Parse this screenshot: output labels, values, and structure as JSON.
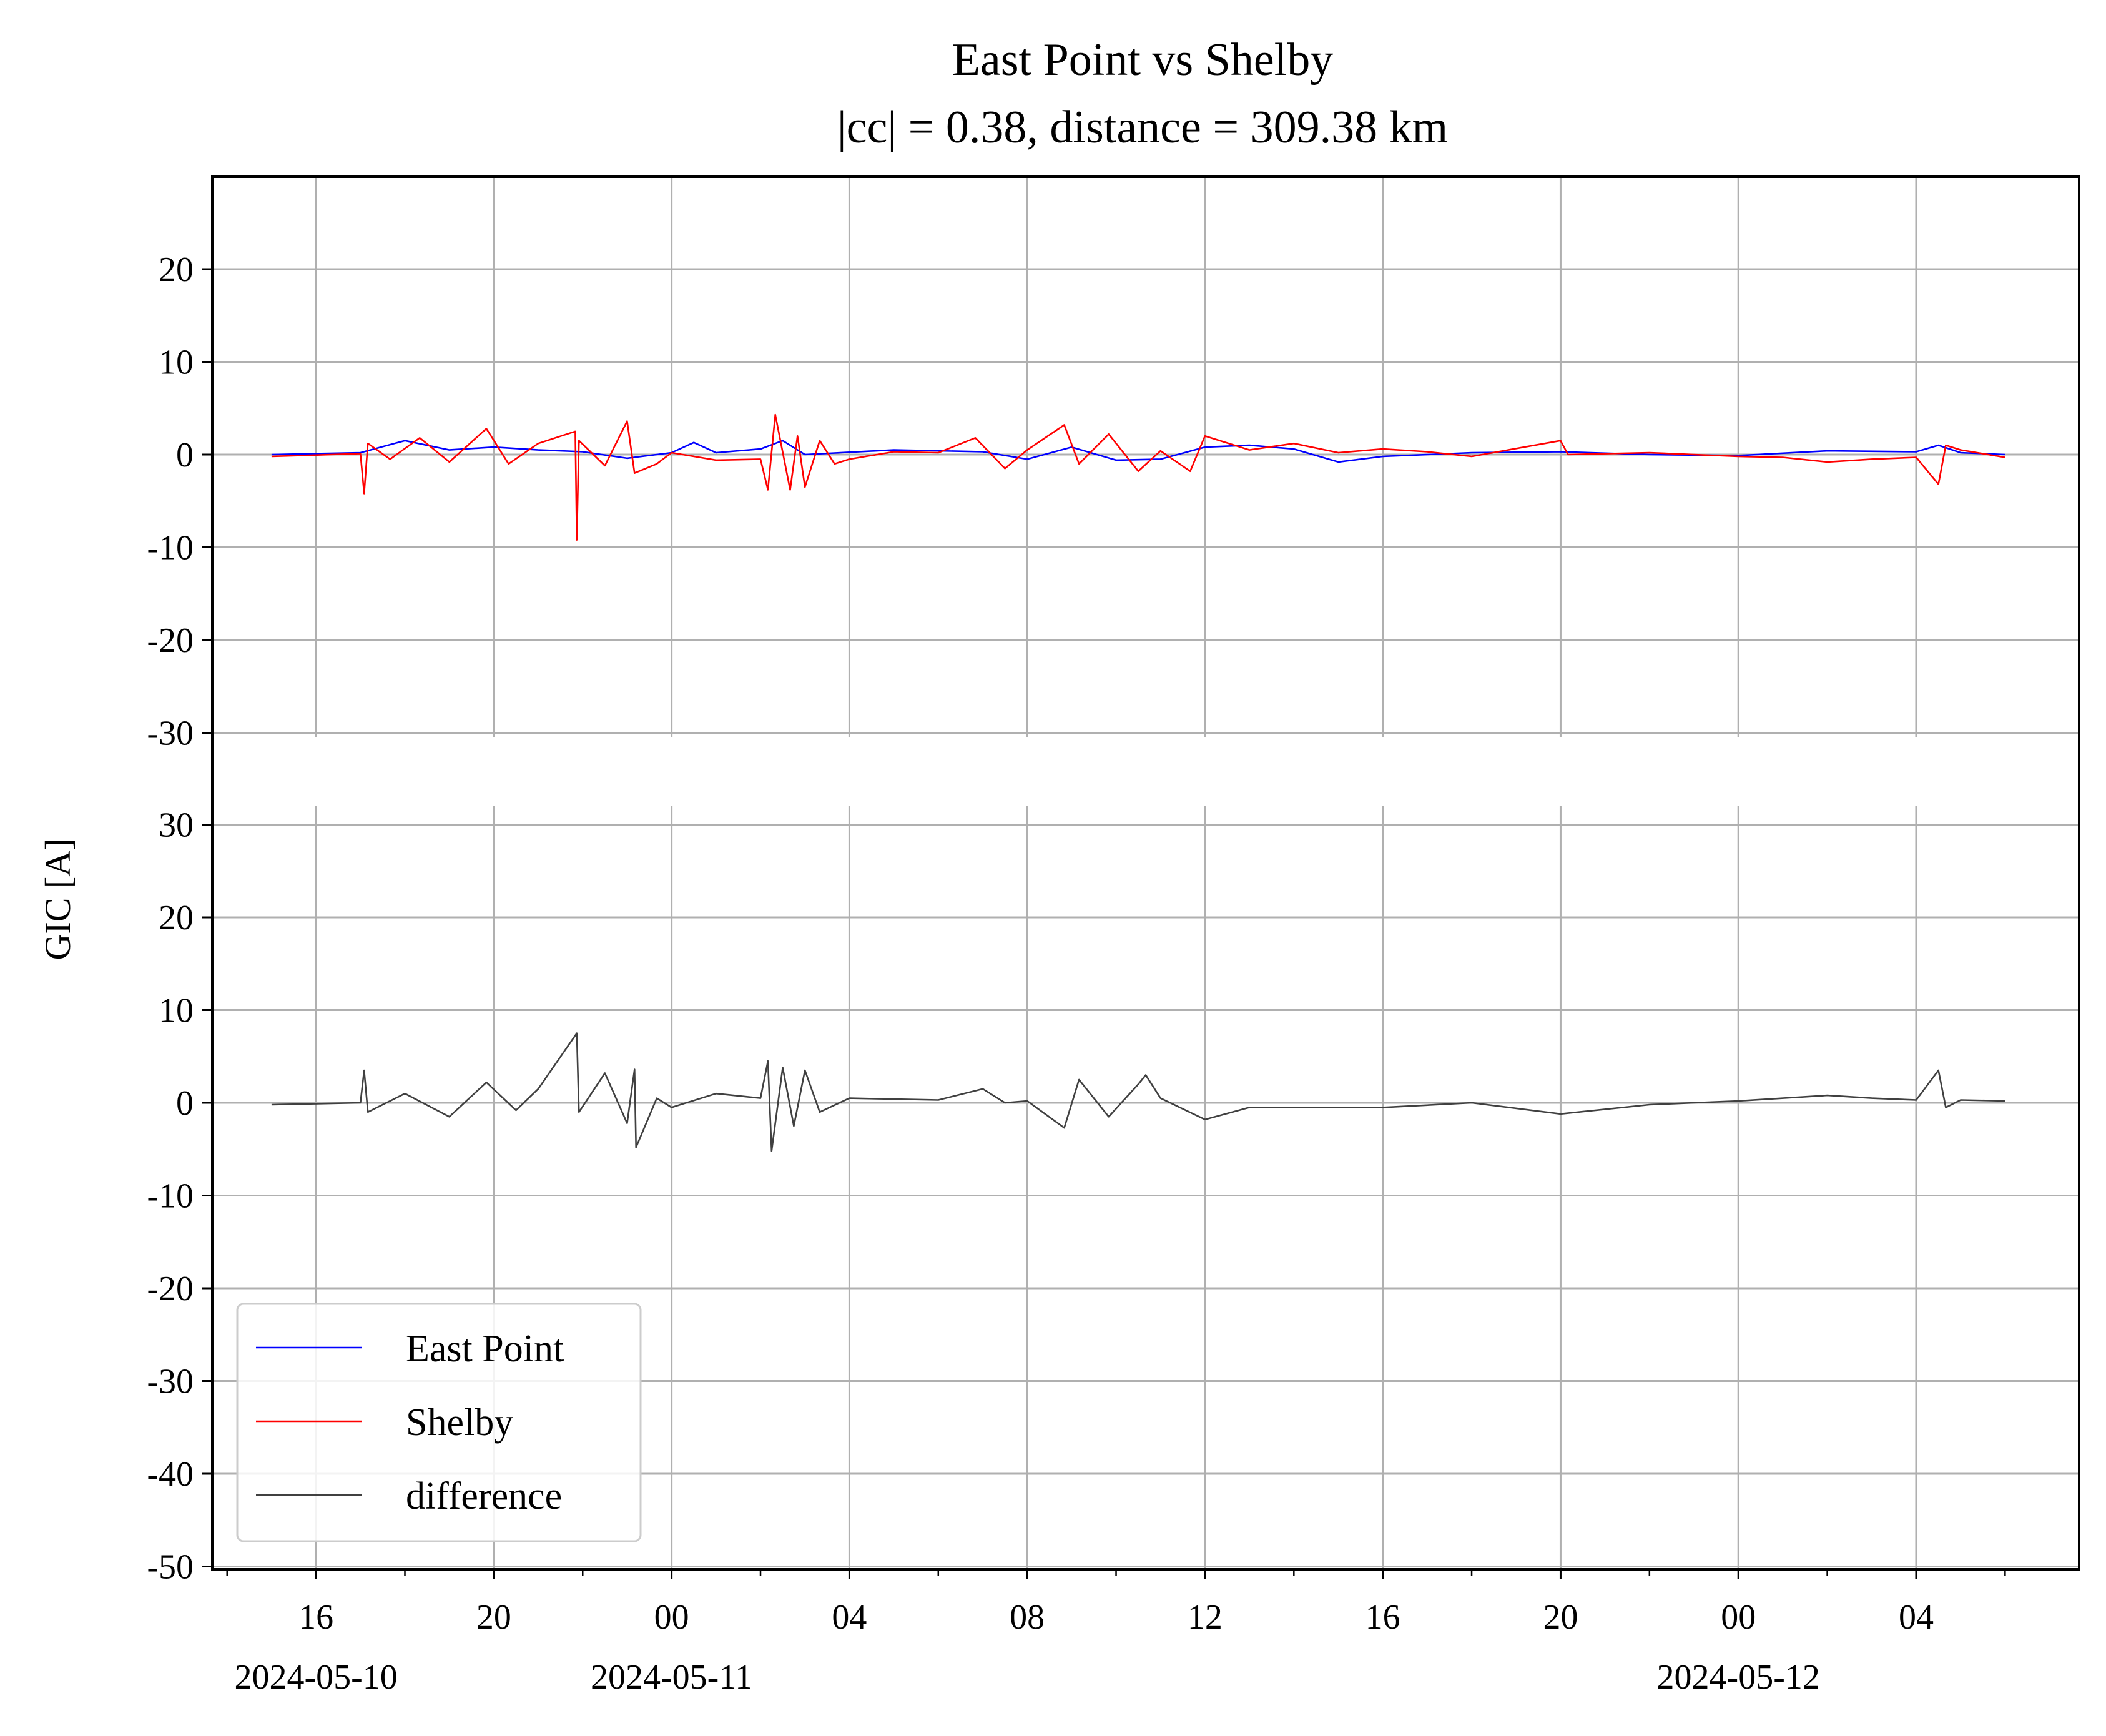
{
  "chart_data": {
    "type": "line",
    "title": "East Point vs Shelby",
    "subtitle": "|cc| = 0.38, distance = 309.38 km",
    "ylabel": "GIC [A]",
    "xlabel": "",
    "x_range": [
      "2024-05-10 13:40",
      "2024-05-12 07:40"
    ],
    "x_ticks": [
      "16",
      "20",
      "00",
      "04",
      "08",
      "12",
      "16",
      "20",
      "00",
      "04"
    ],
    "x_date_labels": [
      "2024-05-10",
      "2024-05-11",
      "2024-05-12"
    ],
    "grid": true,
    "legend_position": "lower-left",
    "panels": [
      {
        "name": "top",
        "ylim": [
          -30,
          30
        ],
        "yticks": [
          "20",
          "10",
          "0",
          "-10",
          "-20",
          "-30"
        ],
        "series": [
          {
            "name": "East Point",
            "color": "#0000ff",
            "points": [
              [
                "2024-05-10 15:00",
                0.0
              ],
              [
                "2024-05-10 17:00",
                0.2
              ],
              [
                "2024-05-10 18:00",
                1.5
              ],
              [
                "2024-05-10 19:00",
                0.5
              ],
              [
                "2024-05-10 20:00",
                0.8
              ],
              [
                "2024-05-10 21:00",
                0.5
              ],
              [
                "2024-05-10 22:00",
                0.3
              ],
              [
                "2024-05-10 23:00",
                -0.4
              ],
              [
                "2024-05-11 00:00",
                0.2
              ],
              [
                "2024-05-11 00:30",
                1.3
              ],
              [
                "2024-05-11 01:00",
                0.2
              ],
              [
                "2024-05-11 02:00",
                0.6
              ],
              [
                "2024-05-11 02:30",
                1.5
              ],
              [
                "2024-05-11 03:00",
                0.0
              ],
              [
                "2024-05-11 05:00",
                0.5
              ],
              [
                "2024-05-11 07:00",
                0.3
              ],
              [
                "2024-05-11 08:00",
                -0.5
              ],
              [
                "2024-05-11 09:00",
                0.8
              ],
              [
                "2024-05-11 10:00",
                -0.6
              ],
              [
                "2024-05-11 11:00",
                -0.5
              ],
              [
                "2024-05-11 12:00",
                0.8
              ],
              [
                "2024-05-11 13:00",
                1.0
              ],
              [
                "2024-05-11 14:00",
                0.6
              ],
              [
                "2024-05-11 15:00",
                -0.8
              ],
              [
                "2024-05-11 16:00",
                -0.2
              ],
              [
                "2024-05-11 18:00",
                0.2
              ],
              [
                "2024-05-11 20:00",
                0.3
              ],
              [
                "2024-05-11 22:00",
                0.0
              ],
              [
                "2024-05-12 00:00",
                -0.1
              ],
              [
                "2024-05-12 02:00",
                0.4
              ],
              [
                "2024-05-12 04:00",
                0.3
              ],
              [
                "2024-05-12 04:30",
                1.0
              ],
              [
                "2024-05-12 05:00",
                0.2
              ],
              [
                "2024-05-12 06:00",
                0.0
              ]
            ]
          },
          {
            "name": "Shelby",
            "color": "#ff0000",
            "points": [
              [
                "2024-05-10 15:00",
                -0.2
              ],
              [
                "2024-05-10 17:00",
                0.1
              ],
              [
                "2024-05-10 17:05",
                -4.2
              ],
              [
                "2024-05-10 17:10",
                1.2
              ],
              [
                "2024-05-10 17:40",
                -0.5
              ],
              [
                "2024-05-10 18:20",
                1.8
              ],
              [
                "2024-05-10 19:00",
                -0.8
              ],
              [
                "2024-05-10 19:50",
                2.8
              ],
              [
                "2024-05-10 20:20",
                -1.0
              ],
              [
                "2024-05-10 21:00",
                1.2
              ],
              [
                "2024-05-10 21:50",
                2.5
              ],
              [
                "2024-05-10 21:52",
                -9.2
              ],
              [
                "2024-05-10 21:55",
                1.5
              ],
              [
                "2024-05-10 22:30",
                -1.2
              ],
              [
                "2024-05-10 23:00",
                3.6
              ],
              [
                "2024-05-10 23:10",
                -2.0
              ],
              [
                "2024-05-10 23:40",
                -1.0
              ],
              [
                "2024-05-11 00:00",
                0.2
              ],
              [
                "2024-05-11 01:00",
                -0.6
              ],
              [
                "2024-05-11 02:00",
                -0.5
              ],
              [
                "2024-05-11 02:10",
                -3.8
              ],
              [
                "2024-05-11 02:20",
                4.3
              ],
              [
                "2024-05-11 02:40",
                -3.8
              ],
              [
                "2024-05-11 02:50",
                2.0
              ],
              [
                "2024-05-11 03:00",
                -3.5
              ],
              [
                "2024-05-11 03:20",
                1.5
              ],
              [
                "2024-05-11 03:40",
                -1.0
              ],
              [
                "2024-05-11 04:00",
                -0.5
              ],
              [
                "2024-05-11 05:00",
                0.3
              ],
              [
                "2024-05-11 06:00",
                0.2
              ],
              [
                "2024-05-11 06:50",
                1.8
              ],
              [
                "2024-05-11 07:30",
                -1.5
              ],
              [
                "2024-05-11 08:00",
                0.5
              ],
              [
                "2024-05-11 08:50",
                3.2
              ],
              [
                "2024-05-11 09:10",
                -1.0
              ],
              [
                "2024-05-11 09:50",
                2.2
              ],
              [
                "2024-05-11 10:30",
                -1.8
              ],
              [
                "2024-05-11 11:00",
                0.4
              ],
              [
                "2024-05-11 11:40",
                -1.8
              ],
              [
                "2024-05-11 12:00",
                2.0
              ],
              [
                "2024-05-11 13:00",
                0.5
              ],
              [
                "2024-05-11 14:00",
                1.2
              ],
              [
                "2024-05-11 15:00",
                0.2
              ],
              [
                "2024-05-11 16:00",
                0.6
              ],
              [
                "2024-05-11 17:00",
                0.3
              ],
              [
                "2024-05-11 18:00",
                -0.2
              ],
              [
                "2024-05-11 20:00",
                1.5
              ],
              [
                "2024-05-11 20:10",
                0.0
              ],
              [
                "2024-05-11 22:00",
                0.2
              ],
              [
                "2024-05-12 00:00",
                -0.2
              ],
              [
                "2024-05-12 01:00",
                -0.3
              ],
              [
                "2024-05-12 02:00",
                -0.8
              ],
              [
                "2024-05-12 03:00",
                -0.5
              ],
              [
                "2024-05-12 04:00",
                -0.3
              ],
              [
                "2024-05-12 04:30",
                -3.2
              ],
              [
                "2024-05-12 04:40",
                1.0
              ],
              [
                "2024-05-12 05:00",
                0.5
              ],
              [
                "2024-05-12 06:00",
                -0.3
              ]
            ]
          }
        ]
      },
      {
        "name": "bottom",
        "ylim": [
          -50,
          32
        ],
        "yticks": [
          "30",
          "20",
          "10",
          "0",
          "-10",
          "-20",
          "-30",
          "-40",
          "-50"
        ],
        "series": [
          {
            "name": "difference",
            "color": "#404040",
            "points": [
              [
                "2024-05-10 15:00",
                -0.2
              ],
              [
                "2024-05-10 17:00",
                0.0
              ],
              [
                "2024-05-10 17:05",
                3.5
              ],
              [
                "2024-05-10 17:10",
                -1.0
              ],
              [
                "2024-05-10 18:00",
                1.0
              ],
              [
                "2024-05-10 19:00",
                -1.5
              ],
              [
                "2024-05-10 19:50",
                2.2
              ],
              [
                "2024-05-10 20:30",
                -0.8
              ],
              [
                "2024-05-10 21:00",
                1.5
              ],
              [
                "2024-05-10 21:52",
                7.5
              ],
              [
                "2024-05-10 21:55",
                -1.0
              ],
              [
                "2024-05-10 22:30",
                3.2
              ],
              [
                "2024-05-10 23:00",
                -2.2
              ],
              [
                "2024-05-10 23:10",
                3.6
              ],
              [
                "2024-05-10 23:12",
                -4.8
              ],
              [
                "2024-05-10 23:40",
                0.5
              ],
              [
                "2024-05-11 00:00",
                -0.5
              ],
              [
                "2024-05-11 01:00",
                1.0
              ],
              [
                "2024-05-11 02:00",
                0.5
              ],
              [
                "2024-05-11 02:10",
                4.5
              ],
              [
                "2024-05-11 02:15",
                -5.2
              ],
              [
                "2024-05-11 02:30",
                3.8
              ],
              [
                "2024-05-11 02:45",
                -2.5
              ],
              [
                "2024-05-11 03:00",
                3.5
              ],
              [
                "2024-05-11 03:20",
                -1.0
              ],
              [
                "2024-05-11 04:00",
                0.5
              ],
              [
                "2024-05-11 06:00",
                0.3
              ],
              [
                "2024-05-11 07:00",
                1.5
              ],
              [
                "2024-05-11 07:30",
                0.0
              ],
              [
                "2024-05-11 08:00",
                0.2
              ],
              [
                "2024-05-11 08:50",
                -2.7
              ],
              [
                "2024-05-11 09:10",
                2.5
              ],
              [
                "2024-05-11 09:50",
                -1.5
              ],
              [
                "2024-05-11 10:30",
                2.0
              ],
              [
                "2024-05-11 10:40",
                3.0
              ],
              [
                "2024-05-11 11:00",
                0.5
              ],
              [
                "2024-05-11 12:00",
                -1.8
              ],
              [
                "2024-05-11 13:00",
                -0.5
              ],
              [
                "2024-05-11 14:00",
                -0.5
              ],
              [
                "2024-05-11 16:00",
                -0.5
              ],
              [
                "2024-05-11 18:00",
                0.0
              ],
              [
                "2024-05-11 20:00",
                -1.2
              ],
              [
                "2024-05-11 22:00",
                -0.2
              ],
              [
                "2024-05-12 00:00",
                0.2
              ],
              [
                "2024-05-12 02:00",
                0.8
              ],
              [
                "2024-05-12 03:00",
                0.5
              ],
              [
                "2024-05-12 04:00",
                0.3
              ],
              [
                "2024-05-12 04:30",
                3.5
              ],
              [
                "2024-05-12 04:40",
                -0.5
              ],
              [
                "2024-05-12 05:00",
                0.3
              ],
              [
                "2024-05-12 06:00",
                0.2
              ]
            ]
          }
        ]
      }
    ]
  }
}
